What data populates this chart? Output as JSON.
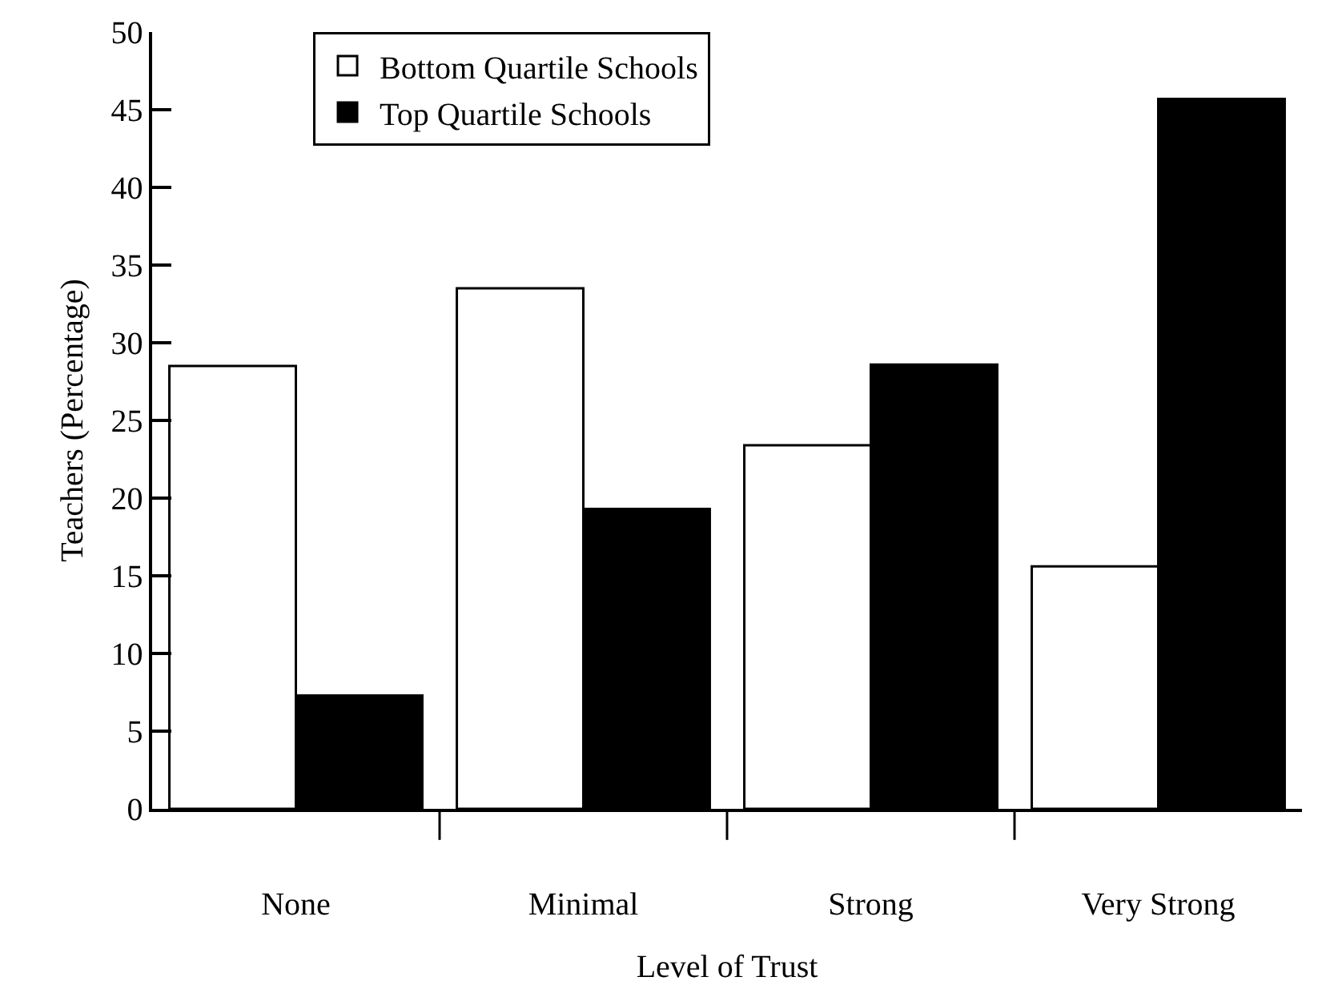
{
  "chart_data": {
    "type": "bar",
    "xlabel": "Level of Trust",
    "ylabel": "Teachers (Percentage)",
    "categories": [
      "None",
      "Minimal",
      "Strong",
      "Very Strong"
    ],
    "series": [
      {
        "name": "Bottom Quartile Schools",
        "color": "#ffffff",
        "values": [
          28.5,
          33.5,
          23.4,
          15.6
        ]
      },
      {
        "name": "Top Quartile Schools",
        "color": "#000000",
        "values": [
          7.3,
          19.3,
          28.6,
          45.7
        ]
      }
    ],
    "ylim": [
      0,
      50
    ],
    "yticks": [
      0,
      5,
      10,
      15,
      20,
      25,
      30,
      35,
      40,
      45,
      50
    ],
    "grid": false,
    "legend": "top left"
  }
}
